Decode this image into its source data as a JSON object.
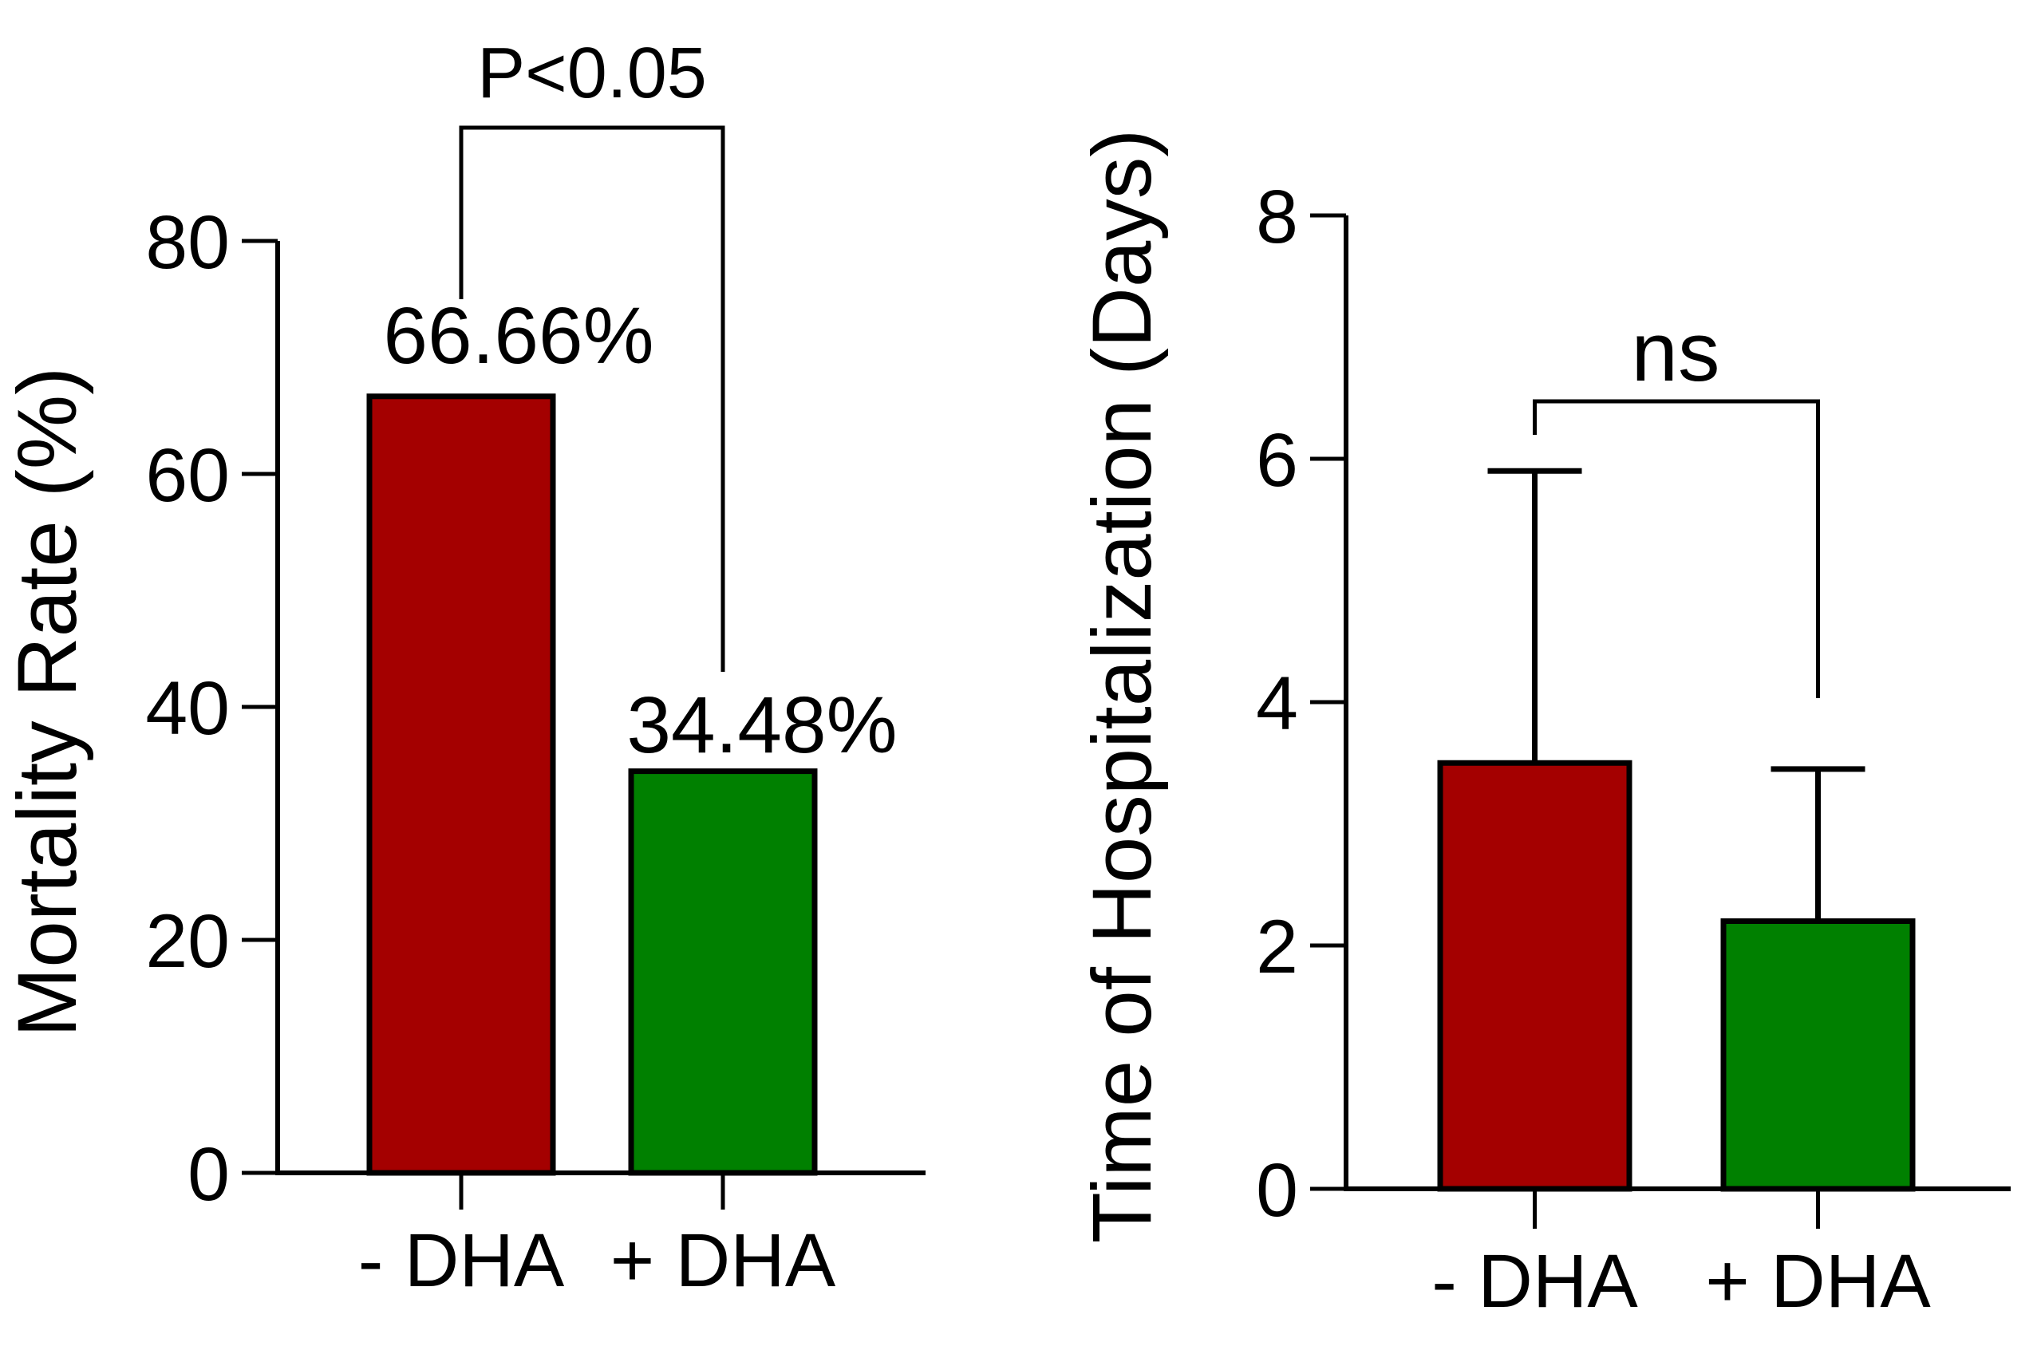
{
  "figure": {
    "background": "#FFFFFF",
    "description": "Two-panel bar figure comparing - DHA and + DHA groups"
  },
  "colors": {
    "minus_dha_bar": "#A40000",
    "plus_dha_bar": "#008000",
    "significant_p_label": "#FF0000",
    "axis": "#000000"
  },
  "chart_data": [
    {
      "type": "bar",
      "title": "",
      "xlabel": "",
      "ylabel": "Mortality Rate (%)",
      "categories": [
        "- DHA",
        "+ DHA"
      ],
      "values": [
        66.66,
        34.48
      ],
      "value_labels": [
        "66.66%",
        "34.48%"
      ],
      "bar_colors": [
        "#A40000",
        "#008000"
      ],
      "ylim": [
        0,
        80
      ],
      "yticks": [
        0,
        20,
        40,
        60,
        80
      ],
      "ytick_labels": [
        "0",
        "20",
        "40",
        "60",
        "80"
      ],
      "grid": false,
      "legend": null,
      "annotation": {
        "label": "P<0.05",
        "color": "#FF0000",
        "connects": [
          "- DHA",
          "+ DHA"
        ]
      }
    },
    {
      "type": "bar",
      "title": "",
      "xlabel": "",
      "ylabel": "Time of Hospitalization (Days)",
      "categories": [
        "- DHA",
        "+ DHA"
      ],
      "values": [
        3.5,
        2.2
      ],
      "errors_plus": [
        2.4,
        1.25
      ],
      "bar_colors": [
        "#A40000",
        "#008000"
      ],
      "ylim": [
        0,
        8
      ],
      "yticks": [
        0,
        2,
        4,
        6,
        8
      ],
      "ytick_labels": [
        "0",
        "2",
        "4",
        "6",
        "8"
      ],
      "grid": false,
      "legend": null,
      "annotation": {
        "label": "ns",
        "color": "#000000",
        "connects": [
          "- DHA",
          "+ DHA"
        ]
      }
    }
  ]
}
